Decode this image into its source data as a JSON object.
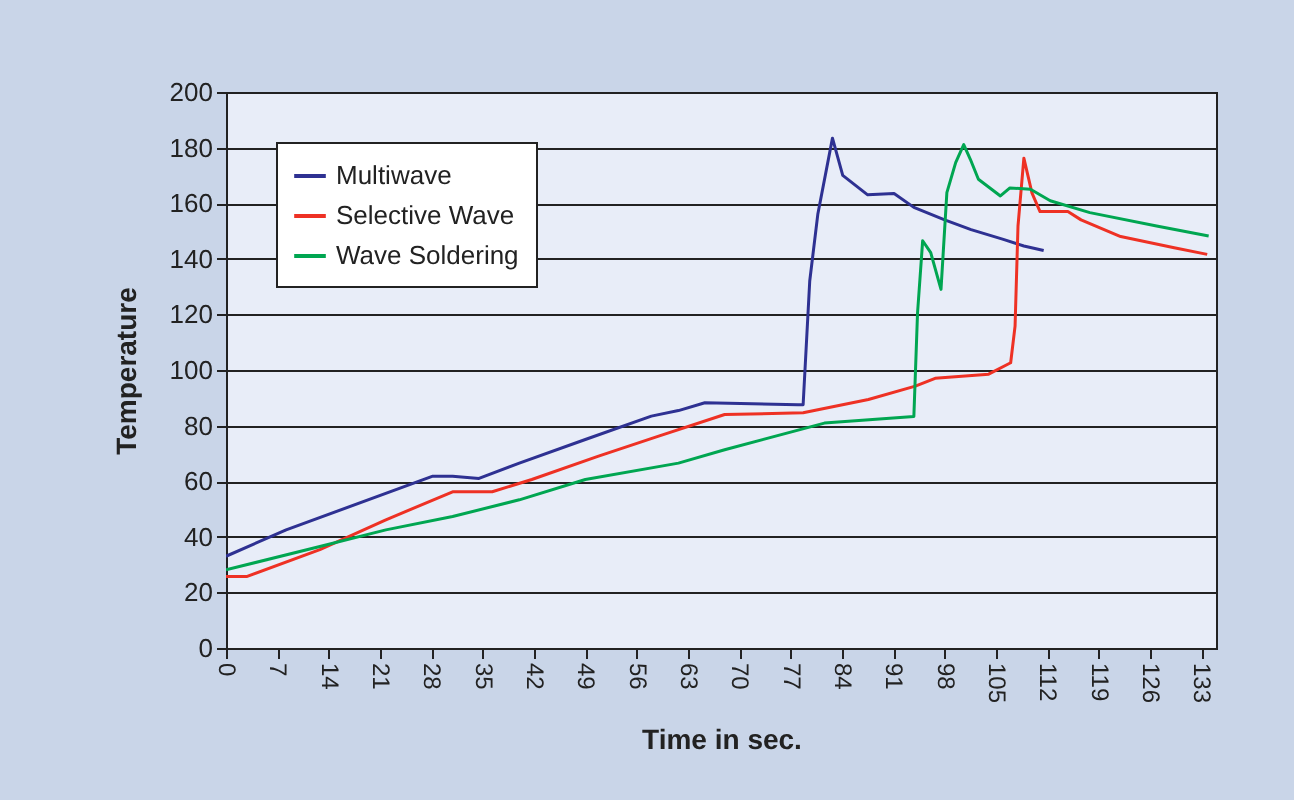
{
  "chart_data": {
    "type": "line",
    "xlabel": "Time in sec.",
    "ylabel": "Temperature",
    "xlim": [
      0,
      135
    ],
    "xticks": [
      0,
      7,
      14,
      21,
      28,
      35,
      42,
      49,
      56,
      63,
      70,
      77,
      84,
      91,
      98,
      105,
      112,
      119,
      126,
      133
    ],
    "ylim": [
      0,
      200
    ],
    "yticks": [
      0,
      20,
      40,
      60,
      80,
      100,
      120,
      140,
      160,
      180,
      200
    ],
    "grid": "y",
    "legend": "top left",
    "marker": "none",
    "line_style": "solid",
    "series": [
      {
        "name": "Multiwave",
        "color": "#2e3192",
        "x": [
          0,
          8.2,
          28.2,
          30.9,
          34.5,
          40,
          49,
          58,
          61.7,
          65.3,
          78,
          78.7,
          79.6,
          80.7,
          82.7,
          84.1,
          87.5,
          91.1,
          93.8,
          98,
          101.6,
          106,
          108.8,
          111.5
        ],
        "values": [
          33,
          42.5,
          61.8,
          61.8,
          61,
          66.5,
          75,
          83.4,
          85.4,
          88.2,
          87.5,
          87.5,
          132,
          156,
          183.4,
          170,
          163,
          163.5,
          158.5,
          154,
          150.5,
          147,
          144.6,
          143
        ]
      },
      {
        "name": "Selective Wave",
        "color": "#ee3124",
        "x": [
          0,
          2.8,
          12.8,
          21.8,
          30.9,
          36.3,
          41.7,
          50.8,
          59,
          68,
          78.7,
          87.6,
          94,
          96.7,
          104,
          107,
          107.6,
          108,
          108.8,
          109.9,
          111,
          114.8,
          116.6,
          122,
          129.3,
          133.8
        ],
        "values": [
          25.7,
          25.7,
          35.4,
          46.1,
          56.2,
          56.2,
          60.6,
          69,
          76.2,
          84,
          84.6,
          89.4,
          94.2,
          97,
          98.5,
          102.6,
          115.8,
          151.8,
          176.2,
          163.7,
          157,
          157,
          154,
          148,
          144,
          141.6
        ]
      },
      {
        "name": "Wave Soldering",
        "color": "#00a651",
        "x": [
          0,
          12.8,
          21.8,
          30.9,
          40,
          49,
          61.7,
          68,
          81.6,
          93.8,
          94.3,
          95,
          96.1,
          97.5,
          98.3,
          99.5,
          100.6,
          101.5,
          102.6,
          105.6,
          106.9,
          109.7,
          112.4,
          117.8,
          126.9,
          134
        ],
        "values": [
          28.1,
          36.5,
          42.5,
          47.3,
          53.3,
          60.6,
          66.5,
          71.3,
          80.9,
          83.3,
          120.5,
          146.5,
          142.2,
          129,
          163.8,
          174.6,
          181.1,
          175.8,
          168.6,
          162.6,
          165.5,
          165,
          160.9,
          156.6,
          151.8,
          148.2
        ]
      }
    ]
  }
}
